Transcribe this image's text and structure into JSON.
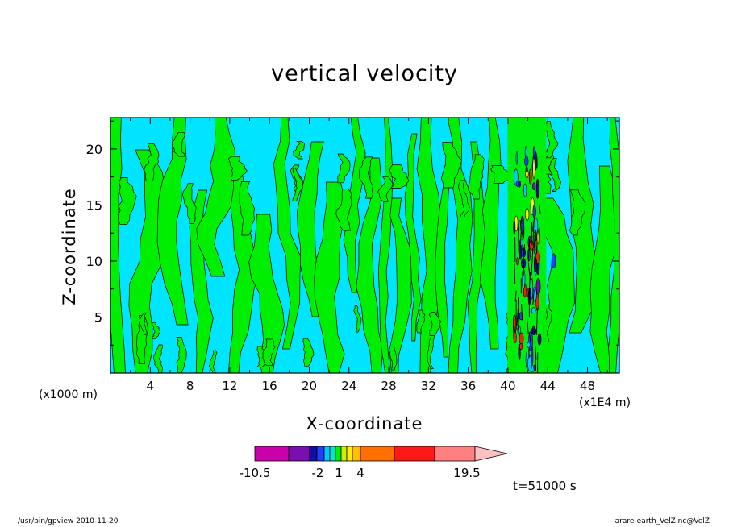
{
  "chart_data": {
    "type": "heatmap",
    "title": "vertical velocity",
    "xlabel": "X-coordinate",
    "ylabel": "Z-coordinate",
    "x_unit_left": "(x1000 m)",
    "x_unit_right": "(x1E4 m)",
    "xticks": [
      "4",
      "8",
      "12",
      "16",
      "20",
      "24",
      "28",
      "32",
      "36",
      "40",
      "44",
      "48"
    ],
    "yticks": [
      "5",
      "10",
      "15",
      "20"
    ],
    "xlim": [
      0,
      51.2
    ],
    "ylim": [
      0,
      22.8
    ],
    "colorbar": {
      "labels": [
        "-10.5",
        "-2",
        "1",
        "4",
        "19.5"
      ],
      "colors": [
        "#cc00aa",
        "#7a0fb0",
        "#1010a0",
        "#2040ff",
        "#00c8ff",
        "#00e5d0",
        "#00ee00",
        "#ccee00",
        "#ffee00",
        "#ffc000",
        "#ff7000",
        "#ff1818",
        "#ff8080",
        "#ffc0c0"
      ]
    },
    "time_label": "t=51000 s"
  },
  "colors": {
    "dominant_field": "#00e5ff",
    "secondary_field": "#00ee00",
    "strong_updraft_zone": "#1010a0"
  },
  "footer": {
    "left": "/usr/bin/gpview   2010-11-20",
    "right": "arare-earth_VelZ.nc@VelZ"
  }
}
